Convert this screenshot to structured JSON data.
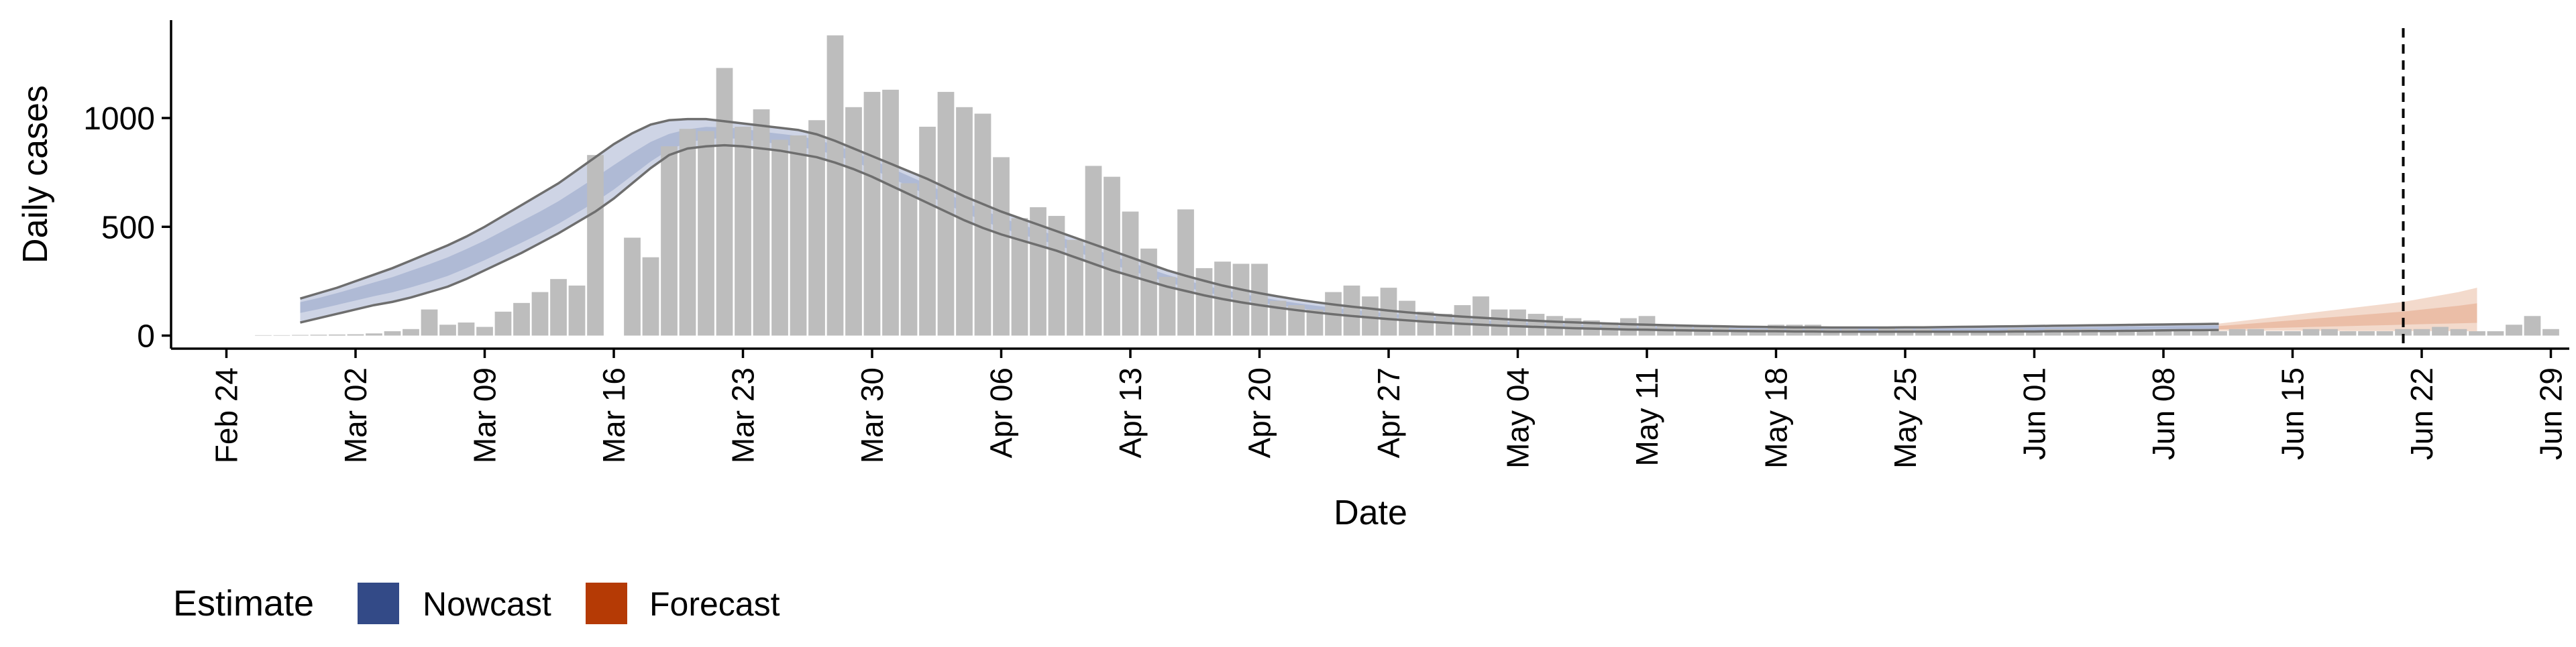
{
  "chart_data": {
    "type": "bar",
    "xlabel": "Date",
    "ylabel": "Daily cases",
    "x_tick_labels": [
      "Feb 24",
      "Mar 02",
      "Mar 09",
      "Mar 16",
      "Mar 23",
      "Mar 30",
      "Apr 06",
      "Apr 13",
      "Apr 20",
      "Apr 27",
      "May 04",
      "May 11",
      "May 18",
      "May 25",
      "Jun 01",
      "Jun 08",
      "Jun 15",
      "Jun 22",
      "Jun 29"
    ],
    "x_tick_dates": [
      "2020-02-24",
      "2020-03-02",
      "2020-03-09",
      "2020-03-16",
      "2020-03-23",
      "2020-03-30",
      "2020-04-06",
      "2020-04-13",
      "2020-04-20",
      "2020-04-27",
      "2020-05-04",
      "2020-05-11",
      "2020-05-18",
      "2020-05-25",
      "2020-06-01",
      "2020-06-08",
      "2020-06-15",
      "2020-06-22",
      "2020-06-29"
    ],
    "y_ticks": [
      0,
      500,
      1000
    ],
    "ylim": [
      -60,
      1450
    ],
    "xlim": [
      "2020-02-21",
      "2020-06-30"
    ],
    "vline_date": "2020-06-21",
    "legend": {
      "title": "Estimate",
      "position": "bottom-left",
      "items": [
        {
          "label": "Nowcast",
          "color": "#334a87"
        },
        {
          "label": "Forecast",
          "color": "#b53a05"
        }
      ]
    },
    "bar_color": "#bdbdbd",
    "bars": {
      "start_date": "2020-02-26",
      "values": [
        2,
        2,
        3,
        4,
        5,
        6,
        10,
        20,
        30,
        120,
        50,
        60,
        40,
        110,
        150,
        200,
        260,
        230,
        830,
        0,
        450,
        360,
        870,
        950,
        940,
        1230,
        960,
        1040,
        900,
        920,
        990,
        1380,
        1050,
        1120,
        1130,
        700,
        960,
        1120,
        1050,
        1020,
        820,
        540,
        590,
        550,
        440,
        780,
        730,
        570,
        400,
        270,
        580,
        310,
        340,
        330,
        330,
        160,
        140,
        120,
        200,
        230,
        180,
        220,
        160,
        110,
        100,
        140,
        180,
        120,
        120,
        100,
        90,
        80,
        70,
        60,
        80,
        90,
        50,
        50,
        40,
        40,
        30,
        30,
        50,
        50,
        50,
        30,
        30,
        20,
        40,
        30,
        30,
        20,
        20,
        20,
        20,
        30,
        20,
        30,
        30,
        30,
        20,
        20,
        20,
        20,
        20,
        20,
        20,
        30,
        30,
        20,
        20,
        30,
        30,
        20,
        20,
        20,
        30,
        30,
        40,
        30,
        20,
        20,
        50,
        90,
        30
      ]
    },
    "nowcast": {
      "start_date": "2020-02-28",
      "end_date": "2020-06-11",
      "median": [
        140,
        155,
        175,
        195,
        215,
        235,
        260,
        285,
        315,
        350,
        385,
        425,
        465,
        505,
        550,
        600,
        650,
        705,
        765,
        825,
        875,
        910,
        930,
        935,
        930,
        915,
        905,
        895,
        880,
        860,
        830,
        795,
        755,
        715,
        675,
        635,
        595,
        555,
        520,
        490,
        465,
        440,
        410,
        380,
        350,
        320,
        290,
        262,
        238,
        215,
        195,
        178,
        162,
        148,
        136,
        125,
        115,
        106,
        98,
        90,
        83,
        76,
        70,
        65,
        60,
        56,
        52,
        48,
        45,
        42,
        40,
        38,
        36,
        34,
        32,
        31,
        30,
        29,
        28,
        27,
        26,
        26,
        25,
        25,
        25,
        25,
        25,
        25,
        25,
        26,
        26,
        27,
        27,
        28,
        29,
        30,
        31,
        32,
        33,
        34,
        35,
        36,
        37,
        38,
        39
      ],
      "lower_90": [
        60,
        80,
        100,
        120,
        140,
        155,
        175,
        200,
        225,
        260,
        300,
        340,
        380,
        425,
        470,
        520,
        570,
        630,
        700,
        770,
        830,
        860,
        870,
        875,
        870,
        860,
        850,
        835,
        820,
        795,
        765,
        730,
        690,
        650,
        610,
        570,
        530,
        495,
        465,
        440,
        415,
        390,
        360,
        330,
        300,
        275,
        250,
        225,
        205,
        185,
        168,
        153,
        140,
        128,
        117,
        107,
        98,
        90,
        83,
        76,
        70,
        64,
        59,
        54,
        50,
        46,
        43,
        40,
        37,
        34,
        32,
        30,
        28,
        27,
        25,
        24,
        23,
        22,
        21,
        20,
        20,
        19,
        19,
        18,
        18,
        18,
        18,
        18,
        18,
        18,
        18,
        18,
        18,
        19,
        19,
        20,
        20,
        21,
        21,
        22,
        23,
        24,
        25,
        25,
        26
      ],
      "upper_90": [
        170,
        195,
        220,
        250,
        280,
        310,
        345,
        380,
        415,
        455,
        500,
        550,
        600,
        650,
        700,
        760,
        820,
        880,
        930,
        970,
        990,
        995,
        995,
        985,
        975,
        965,
        955,
        945,
        925,
        895,
        860,
        825,
        790,
        755,
        720,
        680,
        640,
        605,
        570,
        540,
        510,
        480,
        450,
        420,
        390,
        360,
        330,
        300,
        275,
        252,
        230,
        212,
        195,
        180,
        166,
        154,
        143,
        133,
        124,
        115,
        107,
        100,
        93,
        87,
        82,
        77,
        72,
        68,
        64,
        61,
        58,
        55,
        52,
        50,
        48,
        46,
        44,
        43,
        41,
        40,
        39,
        38,
        38,
        37,
        37,
        37,
        37,
        38,
        38,
        39,
        40,
        41,
        42,
        43,
        44,
        45,
        46,
        47,
        48,
        49,
        50,
        51,
        52,
        53,
        54
      ],
      "band_color": "#c6cde0",
      "inner_color": "#a9b5d2",
      "line_color": "#6e6e6e"
    },
    "forecast": {
      "start_date": "2020-06-11",
      "end_date": "2020-06-25",
      "median": [
        35,
        38,
        42,
        46,
        50,
        54,
        58,
        62,
        66,
        70,
        74,
        78,
        82,
        86,
        90
      ],
      "lower_90": [
        22,
        22,
        22,
        22,
        22,
        22,
        22,
        21,
        21,
        21,
        21,
        21,
        21,
        20,
        20
      ],
      "upper_90": [
        55,
        65,
        75,
        85,
        95,
        105,
        115,
        125,
        135,
        145,
        155,
        170,
        185,
        200,
        220
      ],
      "band_color": "#f1d3c3",
      "inner_color": "#e9b8a0"
    }
  }
}
